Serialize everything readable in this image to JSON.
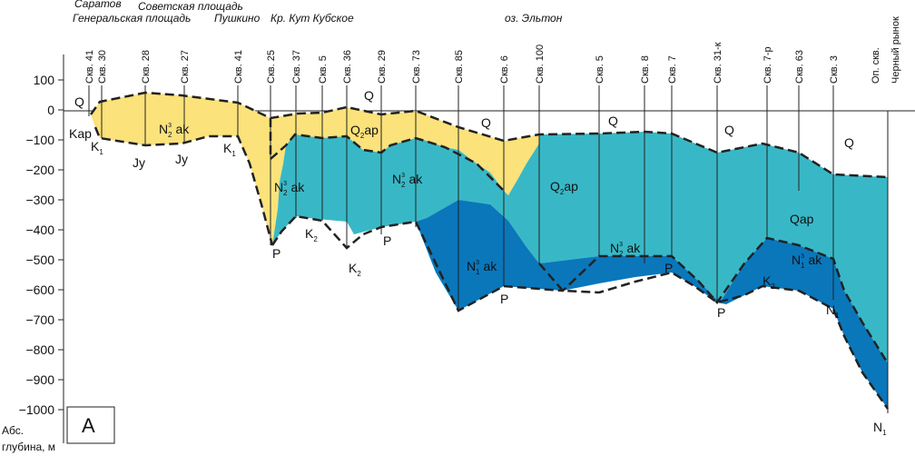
{
  "places": [
    {
      "name": "Саратов"
    },
    {
      "name": "Генеральская площадь"
    },
    {
      "name": "Советская площадь"
    },
    {
      "name": "Пушкино"
    },
    {
      "name": "Кр. Кут Кубское"
    },
    {
      "name": "оз. Эльтон"
    }
  ],
  "wells": [
    "Скв. 41",
    "Скв. 30",
    "Скв. 28",
    "Скв. 27",
    "Скв. 41",
    "Скв. 25",
    "Скв. 37",
    "Скв. 5",
    "Скв. 36",
    "Скв. 29",
    "Скв. 73",
    "Скв. 85",
    "Скв. 6",
    "Скв. 100",
    "Скв. 5",
    "Скв. 8",
    "Скв. 7",
    "Скв. 31-к",
    "Скв. 7-р",
    "Скв. 63",
    "Скв. 3",
    "Оп. скв.",
    "Черный рынок"
  ],
  "axis": {
    "ticks": [
      "100",
      "0",
      "−100",
      "−200",
      "−300",
      "−400",
      "−500",
      "−600",
      "−700",
      "−800",
      "−900",
      "−1000"
    ],
    "unit_line1": "Абс.",
    "unit_line2": "глубина, м"
  },
  "panel_label": "А",
  "units": {
    "Q": "Q",
    "Qap": "Qap",
    "Kap": "Kap",
    "N2ak_base": "N",
    "N2ak_sub": "2",
    "N2ak_sup": "3",
    "N1ak_base": "N",
    "N1ak_sub": "1",
    "N1ak_sup": "3",
    "ak": "ak",
    "Jy": "Jy",
    "K1": "K",
    "K1_sub": "1",
    "K2": "K",
    "K2_sub": "2",
    "P": "P",
    "N1": "N",
    "N1_sub": "1",
    "Q2ap": "Q",
    "Q2ap_sub": "2",
    "ap": "ap"
  },
  "colors": {
    "neogene_yellow": "#fbe27a",
    "quaternary_teal": "#38b8c6",
    "older_blue": "#0a77bb",
    "boundary": "#222222"
  }
}
